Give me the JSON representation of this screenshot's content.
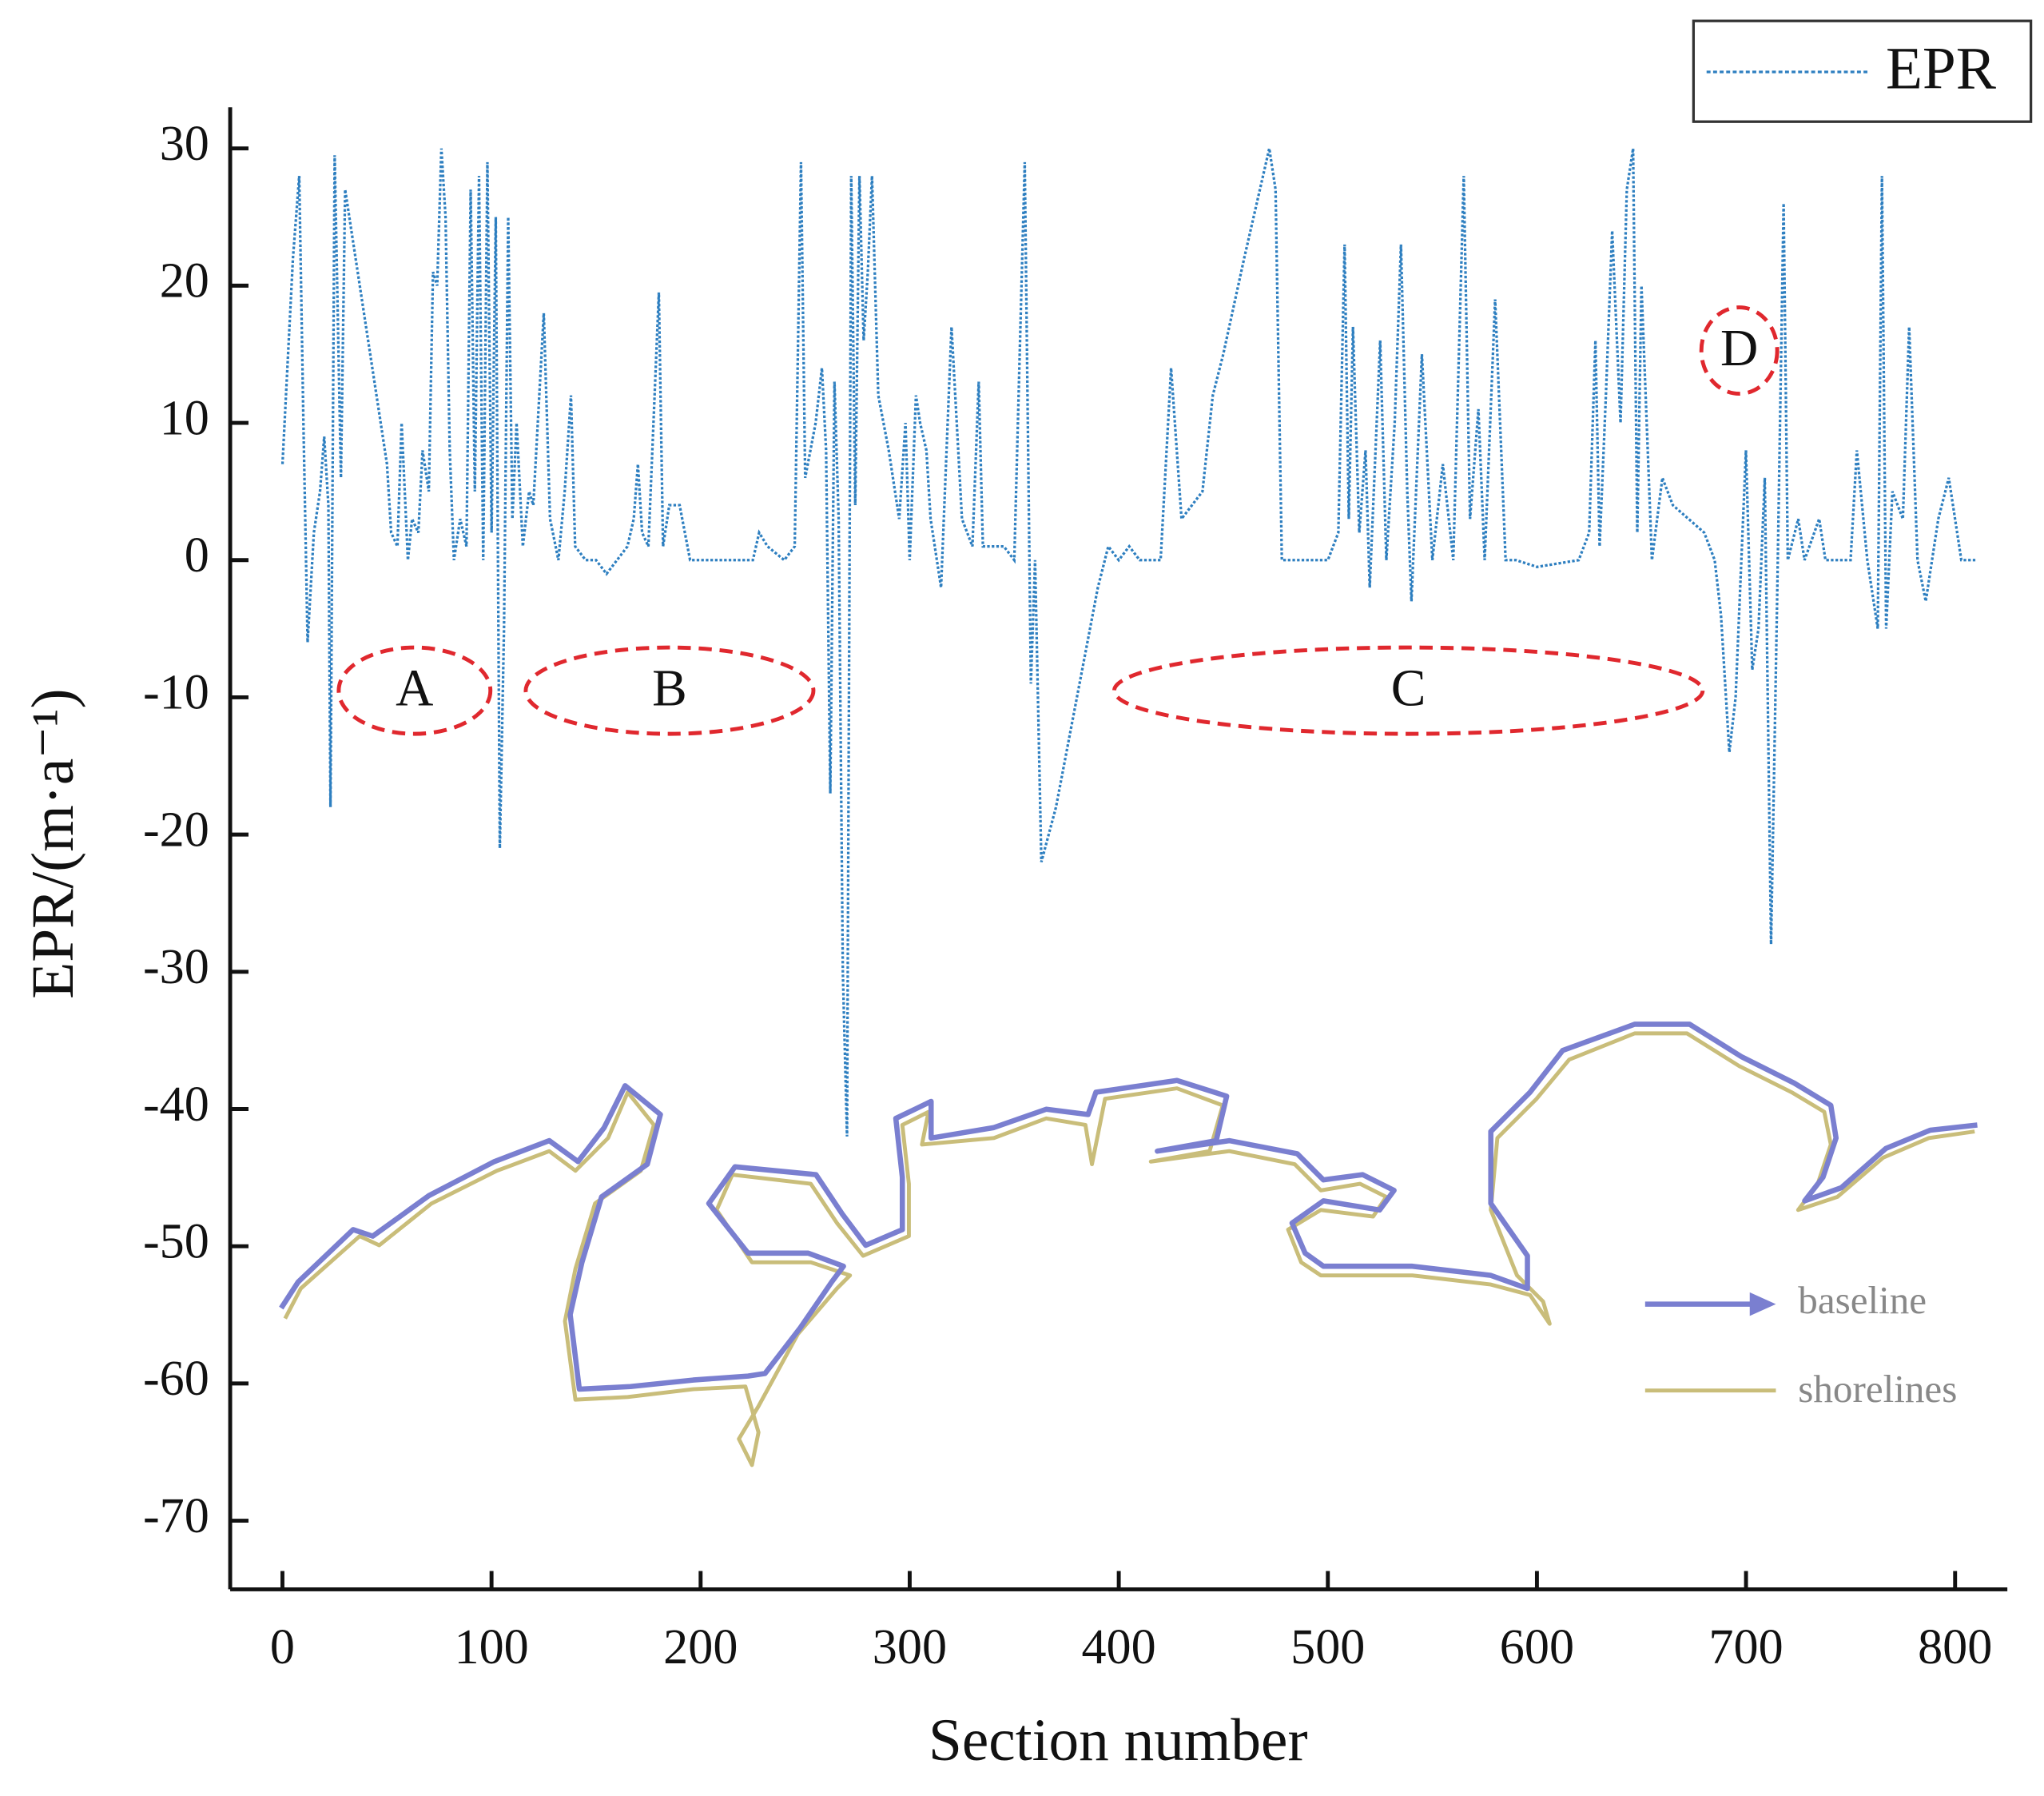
{
  "chart_data": {
    "type": "line",
    "xlabel": "Section number",
    "ylabel": "EPR/(m·a⁻¹)",
    "xlim": [
      -25,
      825
    ],
    "ylim": [
      -75,
      33
    ],
    "xticks": [
      0,
      100,
      200,
      300,
      400,
      500,
      600,
      700,
      800
    ],
    "yticks": [
      30,
      20,
      10,
      0,
      -10,
      -20,
      -30,
      -40,
      -50,
      -60,
      -70
    ],
    "legend": "top-right",
    "annotations": [
      "A",
      "B",
      "C",
      "D"
    ],
    "inset_legend": [
      "baseline",
      "shorelines"
    ],
    "x": [
      0,
      5,
      8,
      10,
      12,
      15,
      18,
      20,
      22,
      23,
      25,
      28,
      30,
      35,
      40,
      45,
      50,
      52,
      55,
      57,
      60,
      62,
      65,
      67,
      70,
      72,
      74,
      76,
      78,
      80,
      82,
      85,
      88,
      90,
      92,
      94,
      96,
      98,
      100,
      102,
      104,
      106,
      108,
      110,
      112,
      115,
      118,
      120,
      125,
      128,
      132,
      135,
      138,
      140,
      145,
      150,
      155,
      160,
      165,
      168,
      170,
      172,
      175,
      180,
      182,
      185,
      190,
      195,
      200,
      210,
      225,
      228,
      232,
      240,
      245,
      248,
      250,
      255,
      258,
      260,
      262,
      264,
      266,
      268,
      270,
      272,
      274,
      276,
      278,
      280,
      282,
      285,
      290,
      295,
      298,
      300,
      303,
      305,
      308,
      310,
      315,
      320,
      325,
      330,
      333,
      335,
      340,
      345,
      350,
      355,
      358,
      360,
      363,
      370,
      380,
      390,
      395,
      400,
      405,
      410,
      420,
      425,
      430,
      440,
      445,
      450,
      460,
      472,
      475,
      478,
      500,
      505,
      508,
      510,
      512,
      515,
      518,
      520,
      525,
      528,
      532,
      535,
      538,
      540,
      545,
      550,
      555,
      560,
      565,
      568,
      572,
      575,
      580,
      585,
      590,
      600,
      620,
      625,
      628,
      630,
      633,
      636,
      640,
      643,
      646,
      648,
      650,
      655,
      660,
      665,
      680,
      685,
      688,
      692,
      695,
      700,
      703,
      706,
      709,
      712,
      715,
      718,
      720,
      725,
      728,
      735,
      738,
      750,
      753,
      758,
      763,
      765,
      767,
      770,
      775,
      778,
      782,
      786,
      792,
      797,
      800,
      803,
      810
    ],
    "series": [
      {
        "name": "EPR",
        "color": "#2e7fc0",
        "values": [
          7,
          22,
          28,
          10,
          -6,
          2,
          5,
          9,
          4,
          -18,
          29.5,
          6,
          27,
          22,
          17,
          12,
          7,
          2,
          1,
          10,
          0,
          3,
          2,
          8,
          5,
          21,
          20,
          30,
          25,
          8,
          0,
          3,
          1,
          27,
          5,
          28,
          0,
          29,
          2,
          25,
          -21,
          -5,
          25,
          3,
          10,
          1,
          5,
          4,
          18,
          3,
          0,
          5,
          12,
          1,
          0,
          0,
          -1,
          0,
          1,
          3,
          7,
          2,
          1,
          19.5,
          1,
          4,
          4,
          0,
          0,
          0,
          0,
          2,
          1,
          0,
          1,
          29,
          6,
          10,
          14,
          8,
          -17,
          13,
          3,
          -30,
          -42,
          28,
          4,
          28,
          16,
          21,
          28,
          12,
          8,
          3,
          10,
          0,
          12,
          10,
          8,
          3,
          -2,
          17,
          3,
          1,
          13,
          1,
          1,
          1,
          0,
          29,
          -9,
          0,
          -22,
          -18,
          -10,
          -2,
          1,
          0,
          1,
          0,
          0,
          14,
          3,
          5,
          12,
          15,
          22,
          30,
          27,
          0,
          0,
          2,
          23,
          3,
          17,
          2,
          8,
          -2,
          16,
          0,
          10,
          23,
          5,
          -3,
          15,
          0,
          7,
          0,
          28,
          3,
          11,
          0,
          19,
          0,
          0,
          -0.5,
          0,
          2,
          16,
          1,
          12,
          24,
          10,
          27,
          30,
          2,
          20,
          0,
          6,
          4,
          2,
          0,
          -4,
          -14,
          -10,
          8,
          -8,
          -5,
          6,
          -28,
          -2,
          26,
          0,
          3,
          0,
          3,
          0,
          0,
          8,
          0,
          -5,
          28,
          -5,
          5,
          3,
          17,
          0,
          -3,
          3,
          6,
          3,
          0,
          0
        ]
      }
    ]
  }
}
